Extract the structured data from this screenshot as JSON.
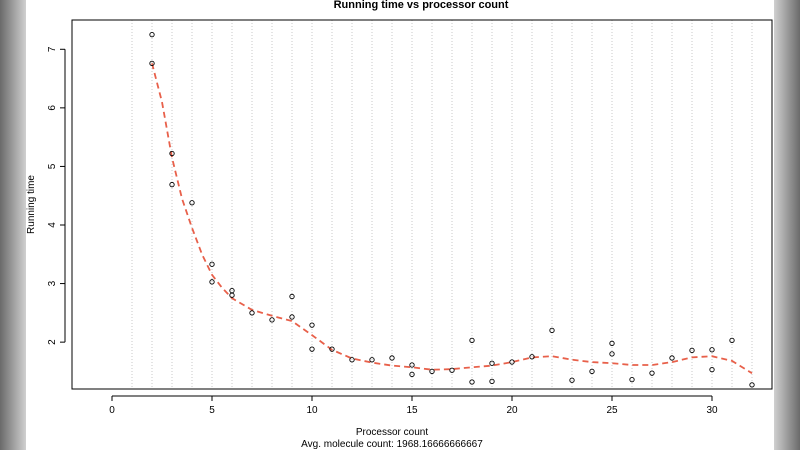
{
  "chart_data": {
    "type": "scatter",
    "title": "Running time vs processor count",
    "xlabel": "Processor count",
    "subtitle": "Avg. molecule count: 1968.16666666667",
    "ylabel": "Running time",
    "xlim": [
      -2,
      33
    ],
    "ylim": [
      1.2,
      7.5
    ],
    "x_ticks": [
      0,
      5,
      10,
      15,
      20,
      25,
      30
    ],
    "y_ticks": [
      2,
      3,
      4,
      5,
      6,
      7
    ],
    "vertical_gridlines_at": [
      1,
      2,
      3,
      4,
      5,
      6,
      7,
      8,
      9,
      10,
      11,
      12,
      13,
      14,
      15,
      16,
      17,
      18,
      19,
      20,
      21,
      22,
      23,
      24,
      25,
      26,
      27,
      28,
      29,
      30,
      31,
      32
    ],
    "grid_color": "#c8c8c8",
    "point_color": "#000000",
    "curve_color": "#e8604a",
    "points": [
      {
        "x": 2,
        "y": 7.25
      },
      {
        "x": 2,
        "y": 6.76
      },
      {
        "x": 3,
        "y": 5.22
      },
      {
        "x": 3,
        "y": 4.69
      },
      {
        "x": 4,
        "y": 4.38
      },
      {
        "x": 5,
        "y": 3.33
      },
      {
        "x": 5,
        "y": 3.03
      },
      {
        "x": 6,
        "y": 2.88
      },
      {
        "x": 6,
        "y": 2.8
      },
      {
        "x": 7,
        "y": 2.5
      },
      {
        "x": 8,
        "y": 2.38
      },
      {
        "x": 9,
        "y": 2.78
      },
      {
        "x": 9,
        "y": 2.43
      },
      {
        "x": 10,
        "y": 2.29
      },
      {
        "x": 10,
        "y": 1.88
      },
      {
        "x": 11,
        "y": 1.88
      },
      {
        "x": 12,
        "y": 1.7
      },
      {
        "x": 13,
        "y": 1.7
      },
      {
        "x": 14,
        "y": 1.73
      },
      {
        "x": 15,
        "y": 1.61
      },
      {
        "x": 15,
        "y": 1.45
      },
      {
        "x": 16,
        "y": 1.5
      },
      {
        "x": 17,
        "y": 1.52
      },
      {
        "x": 18,
        "y": 2.03
      },
      {
        "x": 18,
        "y": 1.32
      },
      {
        "x": 19,
        "y": 1.64
      },
      {
        "x": 19,
        "y": 1.33
      },
      {
        "x": 20,
        "y": 1.66
      },
      {
        "x": 21,
        "y": 1.75
      },
      {
        "x": 22,
        "y": 2.2
      },
      {
        "x": 23,
        "y": 1.35
      },
      {
        "x": 24,
        "y": 1.5
      },
      {
        "x": 25,
        "y": 1.98
      },
      {
        "x": 25,
        "y": 1.8
      },
      {
        "x": 26,
        "y": 1.36
      },
      {
        "x": 27,
        "y": 1.47
      },
      {
        "x": 28,
        "y": 1.73
      },
      {
        "x": 29,
        "y": 1.86
      },
      {
        "x": 30,
        "y": 1.87
      },
      {
        "x": 30,
        "y": 1.53
      },
      {
        "x": 31,
        "y": 2.03
      },
      {
        "x": 32,
        "y": 1.27
      }
    ],
    "smooth_curve": [
      {
        "x": 2,
        "y": 6.76
      },
      {
        "x": 2.5,
        "y": 6.1
      },
      {
        "x": 3,
        "y": 5.15
      },
      {
        "x": 3.5,
        "y": 4.45
      },
      {
        "x": 4,
        "y": 3.95
      },
      {
        "x": 4.5,
        "y": 3.5
      },
      {
        "x": 5,
        "y": 3.15
      },
      {
        "x": 5.5,
        "y": 2.93
      },
      {
        "x": 6,
        "y": 2.75
      },
      {
        "x": 7,
        "y": 2.55
      },
      {
        "x": 8,
        "y": 2.45
      },
      {
        "x": 9,
        "y": 2.36
      },
      {
        "x": 10,
        "y": 2.12
      },
      {
        "x": 11,
        "y": 1.87
      },
      {
        "x": 12,
        "y": 1.72
      },
      {
        "x": 13,
        "y": 1.65
      },
      {
        "x": 14,
        "y": 1.6
      },
      {
        "x": 15,
        "y": 1.57
      },
      {
        "x": 16,
        "y": 1.53
      },
      {
        "x": 17,
        "y": 1.54
      },
      {
        "x": 18,
        "y": 1.57
      },
      {
        "x": 19,
        "y": 1.6
      },
      {
        "x": 20,
        "y": 1.66
      },
      {
        "x": 21,
        "y": 1.74
      },
      {
        "x": 22,
        "y": 1.76
      },
      {
        "x": 23,
        "y": 1.7
      },
      {
        "x": 24,
        "y": 1.66
      },
      {
        "x": 25,
        "y": 1.64
      },
      {
        "x": 26,
        "y": 1.61
      },
      {
        "x": 27,
        "y": 1.61
      },
      {
        "x": 28,
        "y": 1.66
      },
      {
        "x": 29,
        "y": 1.74
      },
      {
        "x": 30,
        "y": 1.76
      },
      {
        "x": 31,
        "y": 1.68
      },
      {
        "x": 32,
        "y": 1.47
      }
    ]
  }
}
